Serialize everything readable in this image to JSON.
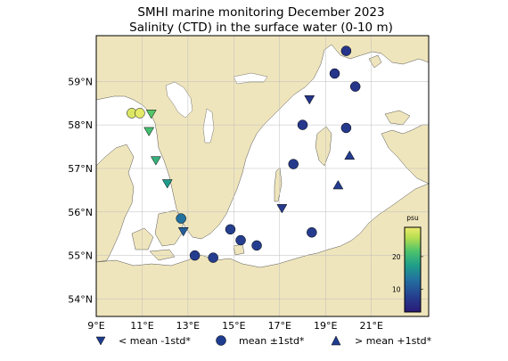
{
  "title_line1": "SMHI marine monitoring December 2023",
  "title_line2": "Salinity (CTD) in the surface water (0-10 m)",
  "lon_ticks": [
    {
      "value": 9,
      "label": "9°E"
    },
    {
      "value": 11,
      "label": "11°E"
    },
    {
      "value": 13,
      "label": "13°E"
    },
    {
      "value": 15,
      "label": "15°E"
    },
    {
      "value": 17,
      "label": "17°E"
    },
    {
      "value": 19,
      "label": "19°E"
    },
    {
      "value": 21,
      "label": "21°E"
    }
  ],
  "lat_ticks": [
    {
      "value": 54,
      "label": "54°N"
    },
    {
      "value": 55,
      "label": "55°N"
    },
    {
      "value": 56,
      "label": "56°N"
    },
    {
      "value": 57,
      "label": "57°N"
    },
    {
      "value": 58,
      "label": "58°N"
    },
    {
      "value": 59,
      "label": "59°N"
    }
  ],
  "extent": {
    "lon_min": 9,
    "lon_max": 23.5,
    "lat_min": 53.6,
    "lat_max": 60.05
  },
  "colorbar": {
    "label": "psu",
    "ticks": [
      10,
      20
    ],
    "min": 3,
    "max": 29
  },
  "legend": [
    {
      "marker": "triangle-down",
      "label": "< mean -1std*"
    },
    {
      "marker": "circle",
      "label": "mean ±1std*"
    },
    {
      "marker": "triangle-up",
      "label": "> mean +1std*"
    }
  ],
  "colors": {
    "land": "#efe5bc",
    "sea": "#ffffff",
    "station_dark": "#1f3d8f"
  },
  "stations": [
    {
      "lon": 10.55,
      "lat": 58.27,
      "marker": "circle",
      "salinity": 28
    },
    {
      "lon": 10.9,
      "lat": 58.27,
      "marker": "circle",
      "salinity": 28.5
    },
    {
      "lon": 11.4,
      "lat": 58.25,
      "marker": "triangle-down",
      "salinity": 22
    },
    {
      "lon": 11.3,
      "lat": 57.85,
      "marker": "triangle-down",
      "salinity": 21
    },
    {
      "lon": 11.6,
      "lat": 57.18,
      "marker": "triangle-down",
      "salinity": 19.5
    },
    {
      "lon": 12.1,
      "lat": 56.65,
      "marker": "triangle-down",
      "salinity": 17
    },
    {
      "lon": 12.7,
      "lat": 55.85,
      "marker": "circle",
      "salinity": 13
    },
    {
      "lon": 12.8,
      "lat": 55.55,
      "marker": "triangle-down",
      "salinity": 11
    },
    {
      "lon": 13.3,
      "lat": 55.0,
      "marker": "circle",
      "salinity": 7.5
    },
    {
      "lon": 14.1,
      "lat": 54.95,
      "marker": "circle",
      "salinity": 7.5
    },
    {
      "lon": 14.85,
      "lat": 55.6,
      "marker": "circle",
      "salinity": 7.8
    },
    {
      "lon": 15.3,
      "lat": 55.35,
      "marker": "circle",
      "salinity": 7.7
    },
    {
      "lon": 16.0,
      "lat": 55.23,
      "marker": "circle",
      "salinity": 7.6
    },
    {
      "lon": 17.1,
      "lat": 56.08,
      "marker": "triangle-down",
      "salinity": 7.2
    },
    {
      "lon": 18.4,
      "lat": 55.53,
      "marker": "circle",
      "salinity": 7.4
    },
    {
      "lon": 17.6,
      "lat": 57.1,
      "marker": "circle",
      "salinity": 7.2
    },
    {
      "lon": 18.0,
      "lat": 58.0,
      "marker": "circle",
      "salinity": 6.9
    },
    {
      "lon": 18.3,
      "lat": 58.58,
      "marker": "triangle-down",
      "salinity": 6.5
    },
    {
      "lon": 19.4,
      "lat": 59.18,
      "marker": "circle",
      "salinity": 6.6
    },
    {
      "lon": 19.9,
      "lat": 59.7,
      "marker": "circle",
      "salinity": 6.4
    },
    {
      "lon": 20.3,
      "lat": 58.88,
      "marker": "circle",
      "salinity": 6.6
    },
    {
      "lon": 19.9,
      "lat": 57.93,
      "marker": "circle",
      "salinity": 7.0
    },
    {
      "lon": 20.05,
      "lat": 57.3,
      "marker": "triangle-up",
      "salinity": 7.6
    },
    {
      "lon": 19.55,
      "lat": 56.62,
      "marker": "triangle-up",
      "salinity": 7.5
    }
  ]
}
